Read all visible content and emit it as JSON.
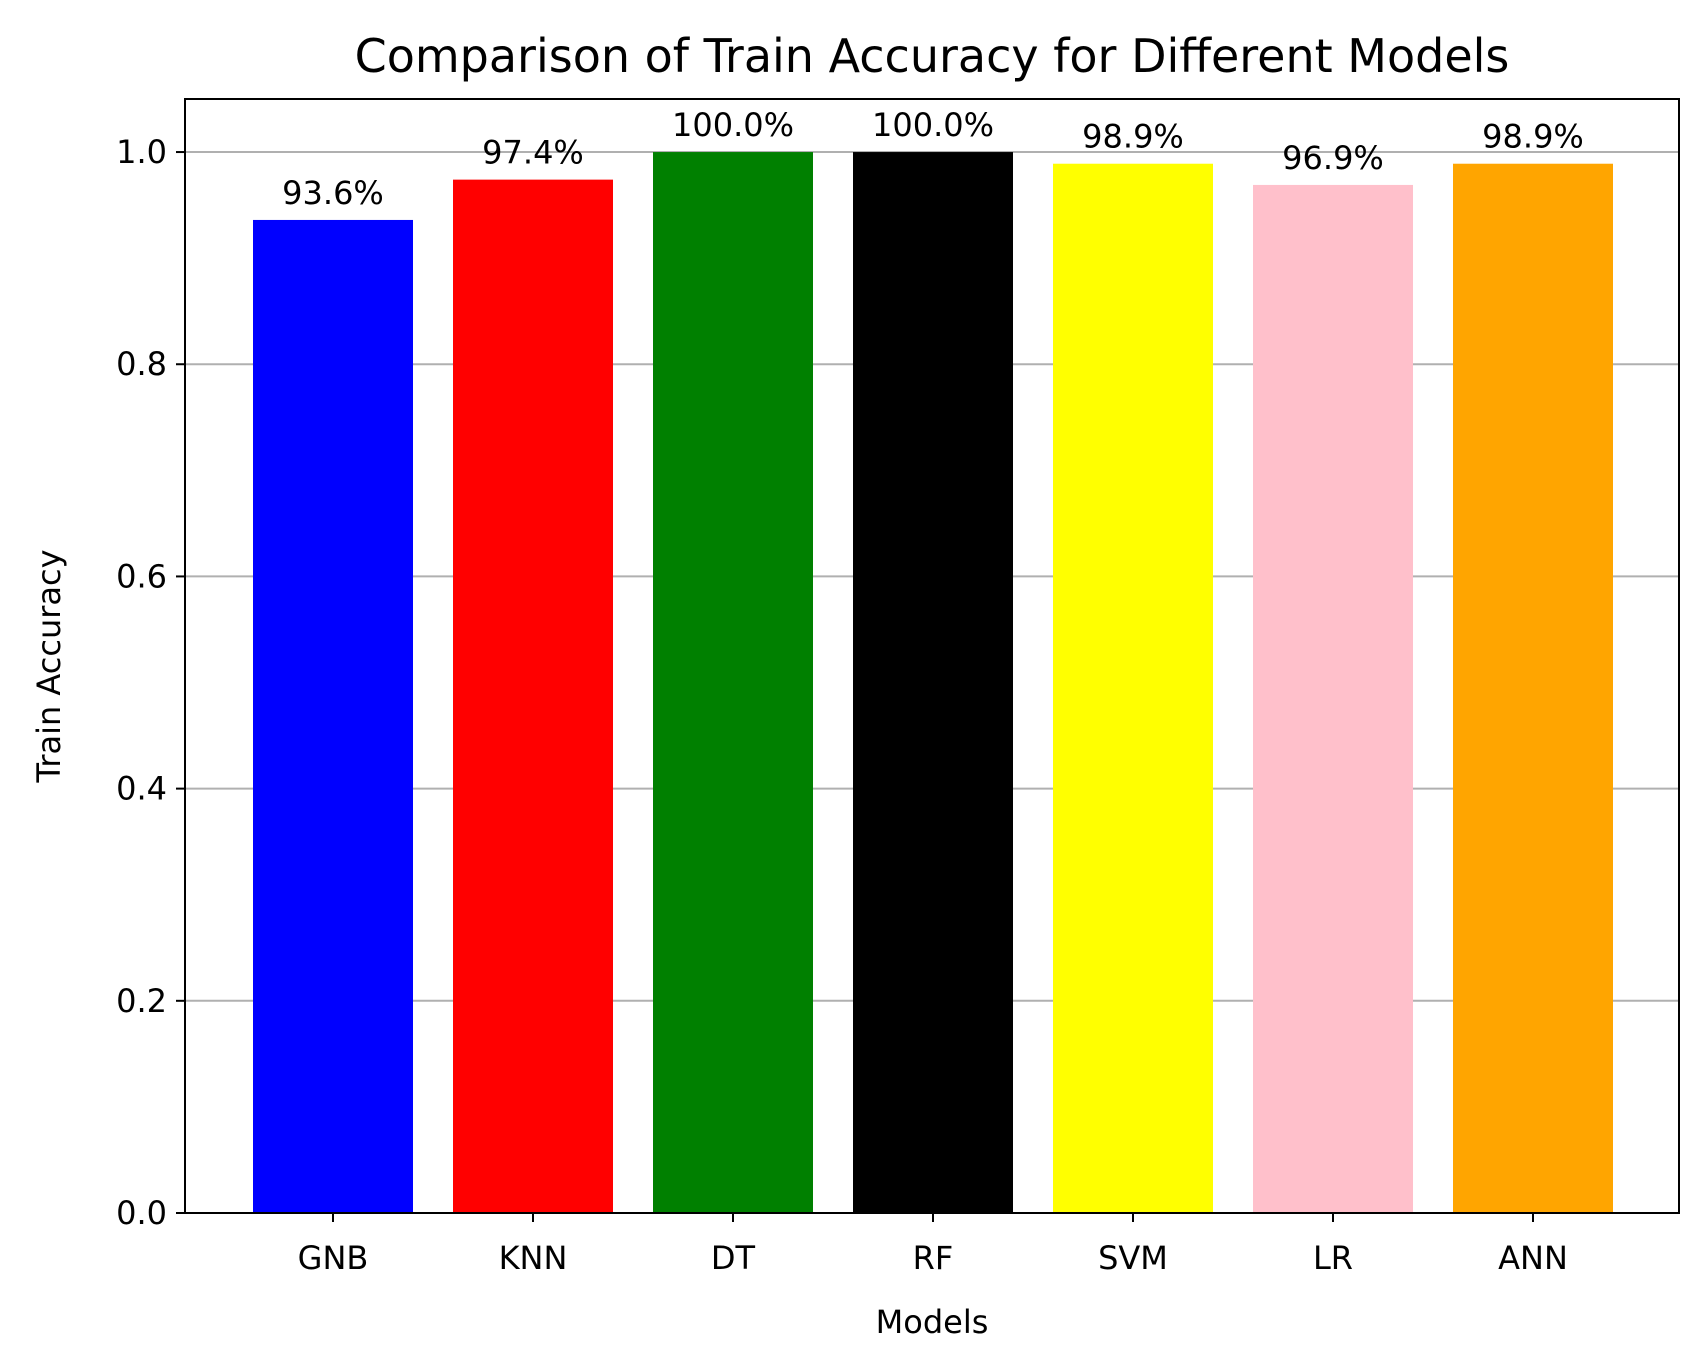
{
  "chart_data": {
    "type": "bar",
    "title": "Comparison of Train Accuracy for Different Models",
    "xlabel": "Models",
    "ylabel": "Train Accuracy",
    "categories": [
      "GNB",
      "KNN",
      "DT",
      "RF",
      "SVM",
      "LR",
      "ANN"
    ],
    "values": [
      0.936,
      0.974,
      1.0,
      1.0,
      0.989,
      0.969,
      0.989
    ],
    "data_labels": [
      "93.6%",
      "97.4%",
      "100.0%",
      "100.0%",
      "98.9%",
      "96.9%",
      "98.9%"
    ],
    "bar_colors": [
      "#0000ff",
      "#ff0000",
      "#008000",
      "#000000",
      "#ffff00",
      "#ffc0cb",
      "#ffa500"
    ],
    "ylim": [
      0,
      1.05
    ],
    "yticks": [
      0.0,
      0.2,
      0.4,
      0.6,
      0.8,
      1.0
    ],
    "ytick_labels": [
      "0.0",
      "0.2",
      "0.4",
      "0.6",
      "0.8",
      "1.0"
    ],
    "grid": "horizontal",
    "grid_color": "#b0b0b0",
    "legend": "none"
  }
}
